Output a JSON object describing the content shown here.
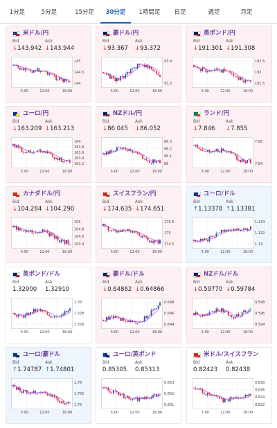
{
  "tabs": [
    {
      "label": "1分足",
      "active": false
    },
    {
      "label": "5分足",
      "active": false
    },
    {
      "label": "15分足",
      "active": false
    },
    {
      "label": "30分足",
      "active": true
    },
    {
      "label": "1時間足",
      "active": false
    },
    {
      "label": "日足",
      "active": false
    },
    {
      "label": "週足",
      "active": false
    },
    {
      "label": "月足",
      "active": false
    }
  ],
  "labels": {
    "bid": "Bid",
    "ask": "Ask"
  },
  "colors": {
    "accent": "#1a5db0",
    "title": "#6a3fa0",
    "down": "#d42a2a",
    "up": "#1a9a4a",
    "candle_up": "#1f4fbf",
    "candle_down": "#e0243a",
    "ma": "#b04fd8"
  },
  "cards": [
    {
      "id": "usdjpy",
      "title": "米ドル/円",
      "dir": "down",
      "bid": "143.942",
      "ask": "143.944",
      "flag": [
        "#3c3b6e",
        "#b22234"
      ],
      "yticks": [
        "145",
        "144.5",
        "144"
      ],
      "xticks": [
        "5:00",
        "12:00",
        "18:00"
      ],
      "bg": "down"
    },
    {
      "id": "audjpy",
      "title": "豪ドル/円",
      "dir": "down",
      "bid": "93.367",
      "ask": "93.372",
      "flag": [
        "#012169",
        "#c8102e"
      ],
      "yticks": [
        "93.4",
        "93.2"
      ],
      "xticks": [
        "5:00",
        "12:00",
        "18:00"
      ],
      "bg": "down"
    },
    {
      "id": "gbpjpy",
      "title": "英ポンド/円",
      "dir": "down",
      "bid": "191.301",
      "ask": "191.308",
      "flag": [
        "#012169",
        "#c8102e"
      ],
      "yticks": [
        "192.5",
        "192",
        "191.5"
      ],
      "xticks": [
        "5:00",
        "12:00",
        "18:00"
      ],
      "bg": "down"
    },
    {
      "id": "eurjpy",
      "title": "ユーロ/円",
      "dir": "down",
      "bid": "163.209",
      "ask": "163.213",
      "flag": [
        "#003399",
        "#ffcc00"
      ],
      "yticks": [
        "164",
        "163.8",
        "163.6",
        "163.4",
        "163.2"
      ],
      "xticks": [
        "5:00",
        "12:00",
        "18:00"
      ],
      "bg": "down"
    },
    {
      "id": "nzdjpy",
      "title": "NZドル/円",
      "dir": "down",
      "bid": "86.045",
      "ask": "86.052",
      "flag": [
        "#012169",
        "#c8102e"
      ],
      "yticks": [
        "86.3",
        "86.2",
        "86.1",
        "86"
      ],
      "xticks": [
        "5:00",
        "12:00",
        "18:00"
      ],
      "bg": "down"
    },
    {
      "id": "zarjpy",
      "title": "ランド/円",
      "dir": "down",
      "bid": "7.846",
      "ask": "7.855",
      "flag": [
        "#007a4d",
        "#de3831"
      ],
      "yticks": [
        "7.86",
        "7.84"
      ],
      "xticks": [
        "5:00",
        "12:00",
        "18:00"
      ],
      "bg": "down"
    },
    {
      "id": "cadjpy",
      "title": "カナダドル/円",
      "dir": "down",
      "bid": "104.284",
      "ask": "104.290",
      "flag": [
        "#d52b1e",
        "#d52b1e"
      ],
      "yticks": [
        "105",
        "104.8",
        "104.6",
        "104.4"
      ],
      "xticks": [
        "5:00",
        "12:00",
        "18:00"
      ],
      "bg": "down"
    },
    {
      "id": "chfjpy",
      "title": "スイスフラン/円",
      "dir": "down",
      "bid": "174.635",
      "ask": "174.651",
      "flag": [
        "#d52b1e",
        "#d52b1e"
      ],
      "yticks": [
        "175.5",
        "175",
        "174.5"
      ],
      "xticks": [
        "5:00",
        "12:00",
        "18:00"
      ],
      "bg": "down"
    },
    {
      "id": "eurusd",
      "title": "ユーロ/ドル",
      "dir": "up",
      "bid": "1.13378",
      "ask": "1.13381",
      "flag": [
        "#003399",
        "#b22234"
      ],
      "yticks": [
        "1.134",
        "1.132",
        "1.13"
      ],
      "xticks": [
        "5:00",
        "12:00",
        "18:00"
      ],
      "bg": "up"
    },
    {
      "id": "gbpusd",
      "title": "英ポンド/ドル",
      "dir": "none",
      "bid": "1.32900",
      "ask": "1.32910",
      "flag": [
        "#012169",
        "#b22234"
      ],
      "yticks": [
        "1.33",
        "1.328",
        "1.326"
      ],
      "xticks": [
        "5:00",
        "12:00",
        "18:00"
      ],
      "bg": "flat"
    },
    {
      "id": "audusd",
      "title": "豪ドル/ドル",
      "dir": "down",
      "bid": "0.64862",
      "ask": "0.64866",
      "flag": [
        "#012169",
        "#b22234"
      ],
      "yticks": [
        "0.648",
        "0.646",
        "0.644"
      ],
      "xticks": [
        "5:00",
        "12:00",
        "18:00"
      ],
      "bg": "down"
    },
    {
      "id": "nzdusd",
      "title": "NZドル/ドル",
      "dir": "down",
      "bid": "0.59770",
      "ask": "0.59784",
      "flag": [
        "#012169",
        "#b22234"
      ],
      "yticks": [
        "0.598",
        "0.596",
        "0.594"
      ],
      "xticks": [
        "5:00",
        "12:00",
        "18:00"
      ],
      "bg": "down"
    },
    {
      "id": "euraud",
      "title": "ユーロ/豪ドル",
      "dir": "up",
      "bid": "1.74787",
      "ask": "1.74801",
      "flag": [
        "#003399",
        "#012169"
      ],
      "yticks": [
        "1.76",
        "1.755",
        "1.75"
      ],
      "xticks": [
        "5:00",
        "12:00",
        "18:00"
      ],
      "bg": "up"
    },
    {
      "id": "eurgbp",
      "title": "ユーロ/英ポンド",
      "dir": "none",
      "bid": "0.85305",
      "ask": "0.85313",
      "flag": [
        "#003399",
        "#012169"
      ],
      "yticks": [
        "0.853",
        "0.852",
        "0.851"
      ],
      "xticks": [
        "5:00",
        "12:00",
        "18:00"
      ],
      "bg": "flat"
    },
    {
      "id": "usdchf",
      "title": "米ドル/スイスフラン",
      "dir": "none",
      "bid": "0.82423",
      "ask": "0.82438",
      "flag": [
        "#d52b1e",
        "#d52b1e"
      ],
      "yticks": [
        "0.828",
        "0.826",
        "0.824",
        "0.822"
      ],
      "xticks": [
        "5:00",
        "12:00",
        "18:00"
      ],
      "bg": "flat"
    }
  ]
}
